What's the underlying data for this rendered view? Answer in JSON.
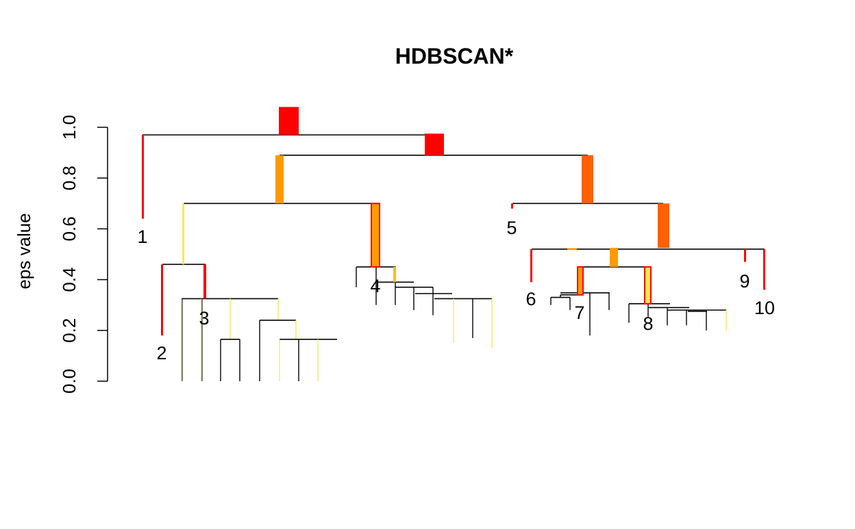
{
  "chart_data": {
    "type": "dendrogram",
    "title": "HDBSCAN*",
    "xlabel": "",
    "ylabel": "eps value",
    "ylim": [
      0,
      1
    ],
    "y_ticks": [
      "0.0",
      "0.2",
      "0.4",
      "0.6",
      "0.8",
      "1.0"
    ],
    "cluster_labels": [
      "1",
      "2",
      "3",
      "4",
      "5",
      "6",
      "7",
      "8",
      "9",
      "10"
    ],
    "colors": {
      "tree_lines": "#000000",
      "stability_high": "#ff0000",
      "stability_mid_high": "#ff6000",
      "stability_mid": "#ff9a00",
      "stability_low": "#ffe84a",
      "selected_outline": "#ff0000"
    },
    "merges": [
      {
        "id": "root",
        "eps": 0.97,
        "children": [
          "1",
          "A"
        ]
      },
      {
        "id": "A",
        "eps": 0.89,
        "children": [
          "B",
          "C"
        ]
      },
      {
        "id": "B",
        "eps": 0.7,
        "children": [
          "D",
          "4"
        ]
      },
      {
        "id": "C",
        "eps": 0.7,
        "children": [
          "5",
          "E"
        ]
      },
      {
        "id": "D",
        "eps": 0.46,
        "children": [
          "2",
          "3"
        ]
      },
      {
        "id": "E",
        "eps": 0.52,
        "children": [
          "F",
          "9",
          "10"
        ]
      },
      {
        "id": "F",
        "eps": 0.45,
        "children": [
          "7",
          "8"
        ]
      }
    ],
    "clusters": [
      {
        "label": "1",
        "birth": 0.97,
        "death": 0.64,
        "selected": false
      },
      {
        "label": "2",
        "birth": 0.46,
        "death": 0.18,
        "selected": false
      },
      {
        "label": "3",
        "birth": 0.46,
        "death": 0.32,
        "selected": false
      },
      {
        "label": "4",
        "birth": 0.7,
        "death": 0.45,
        "selected": true
      },
      {
        "label": "5",
        "birth": 0.7,
        "death": 0.68,
        "selected": false
      },
      {
        "label": "6",
        "birth": 0.52,
        "death": 0.39,
        "selected": false
      },
      {
        "label": "7",
        "birth": 0.45,
        "death": 0.34,
        "selected": true
      },
      {
        "label": "8",
        "birth": 0.45,
        "death": 0.3,
        "selected": true
      },
      {
        "label": "9",
        "birth": 0.52,
        "death": 0.47,
        "selected": false
      },
      {
        "label": "10",
        "birth": 0.52,
        "death": 0.36,
        "selected": false
      }
    ]
  }
}
